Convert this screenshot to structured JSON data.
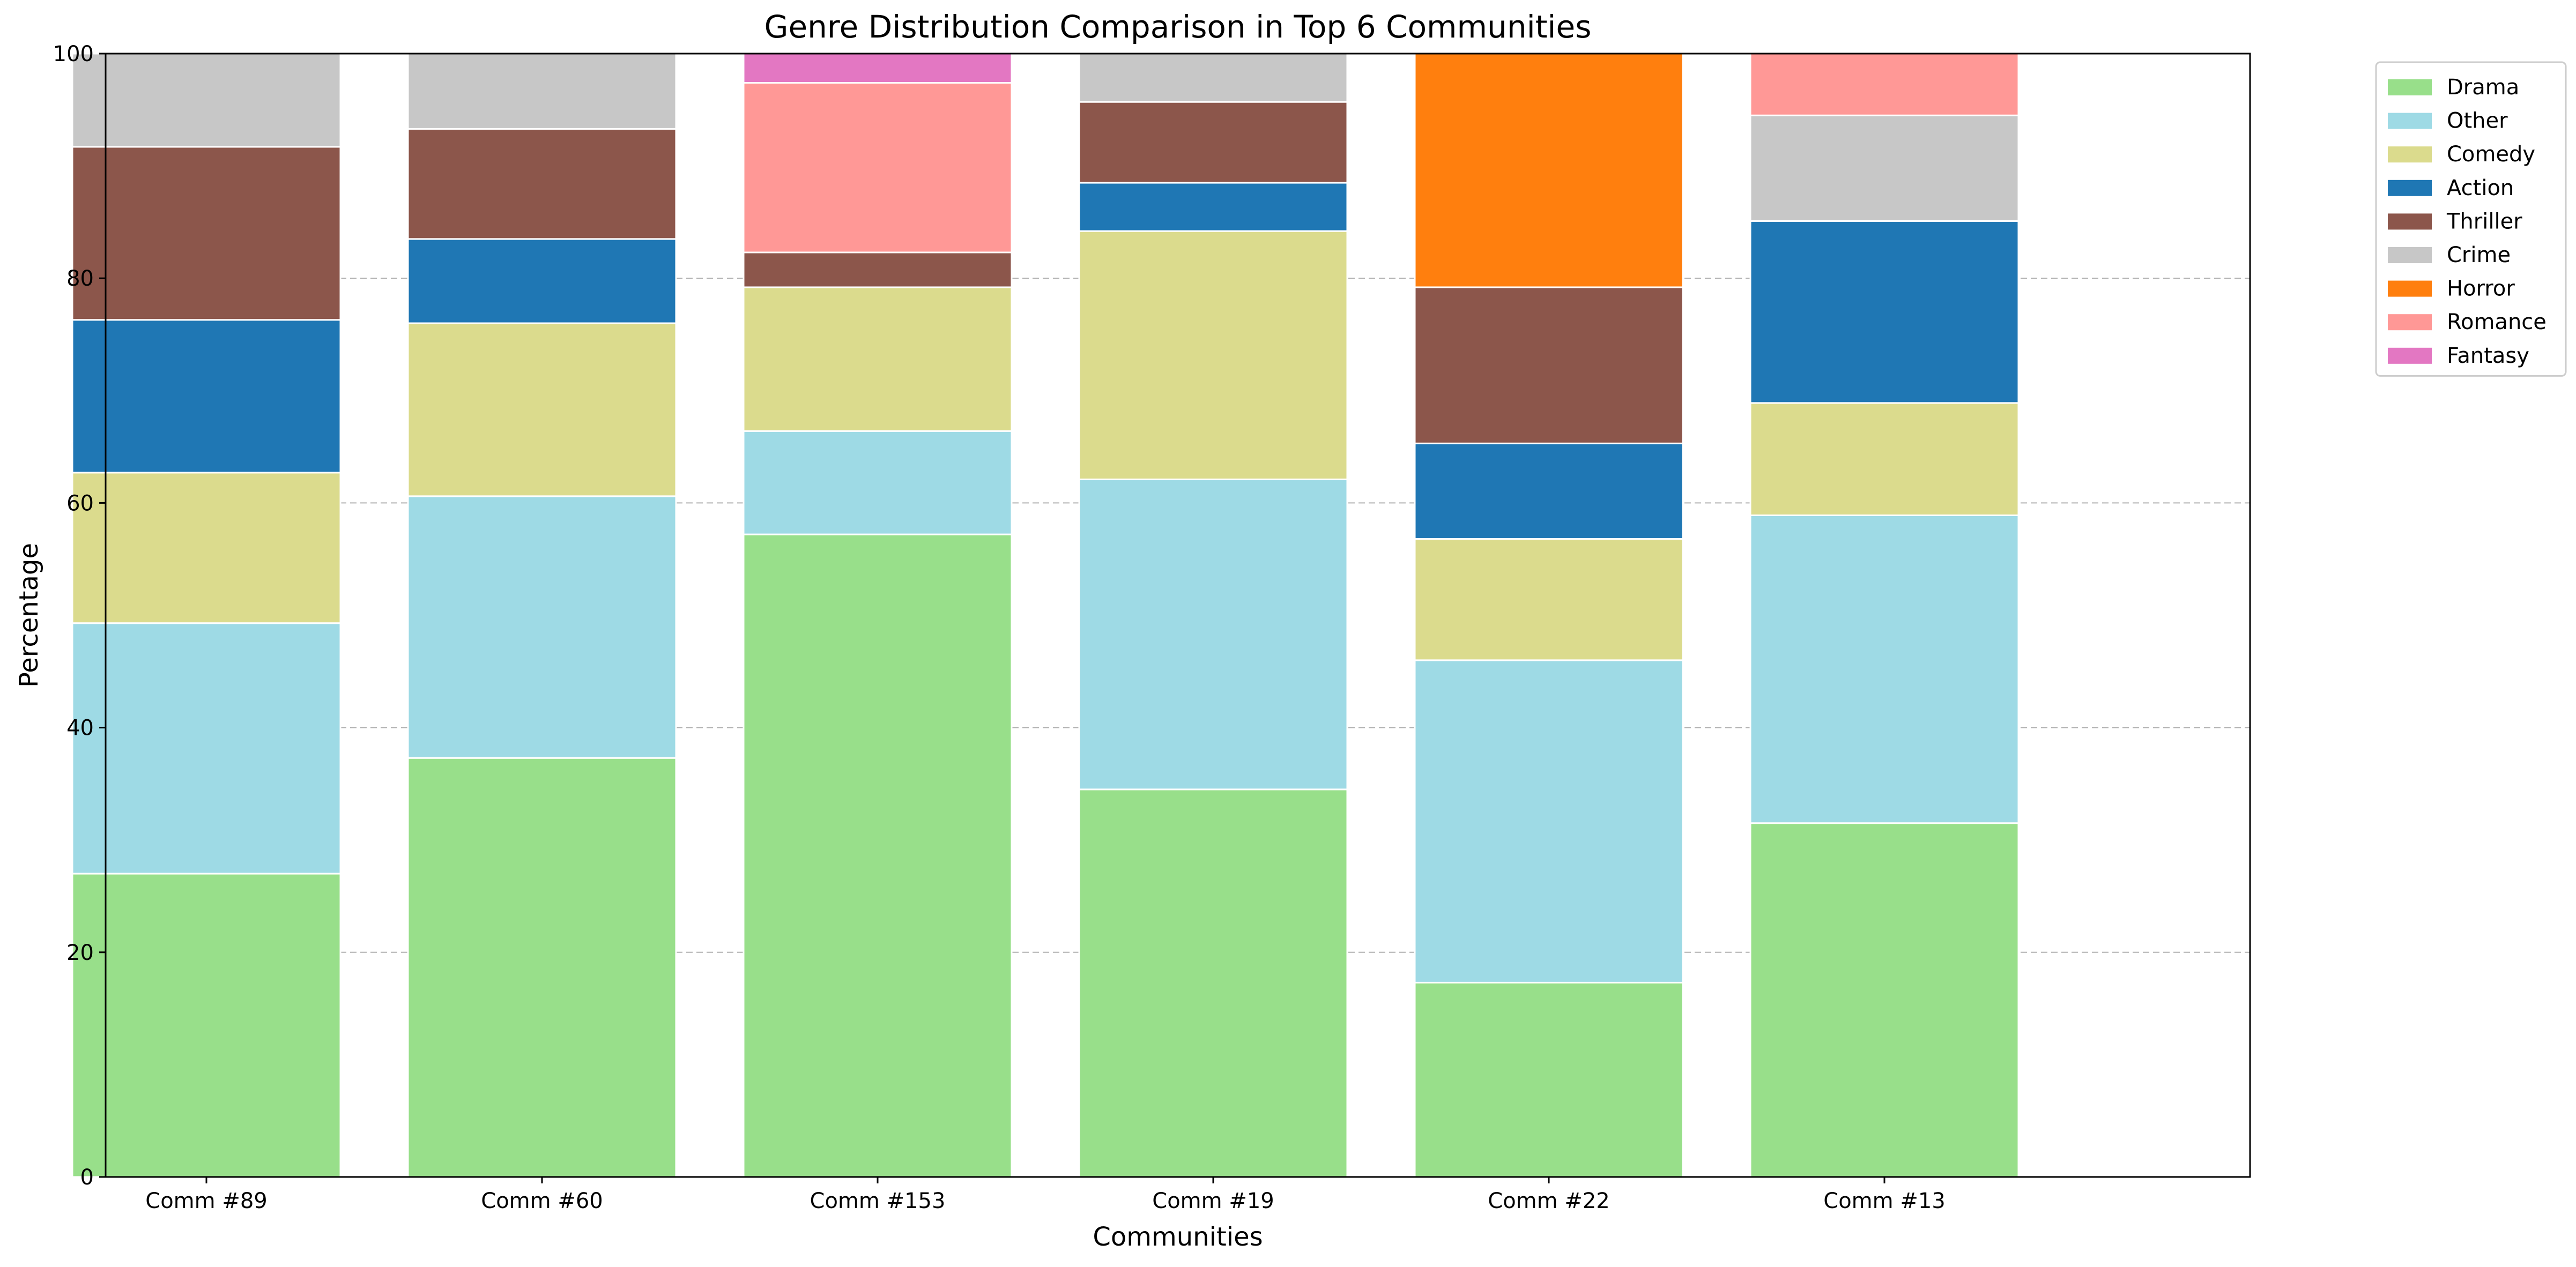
{
  "chart_data": {
    "type": "bar",
    "stacked": true,
    "title": "Genre Distribution Comparison in Top 6 Communities",
    "xlabel": "Communities",
    "ylabel": "Percentage",
    "ylim": [
      0,
      100
    ],
    "yticks": [
      0,
      20,
      40,
      60,
      80,
      100
    ],
    "grid": "horizontal dashed",
    "legend_position": "outside top-right",
    "categories": [
      "Comm #89",
      "Comm #60",
      "Comm #153",
      "Comm #19",
      "Comm #22",
      "Comm #13"
    ],
    "series": [
      {
        "name": "Drama",
        "color": "#98df8a",
        "values": [
          27.0,
          37.3,
          57.2,
          34.5,
          17.3,
          31.5
        ]
      },
      {
        "name": "Other",
        "color": "#9edae5",
        "values": [
          22.3,
          23.3,
          9.2,
          27.6,
          28.7,
          27.4
        ]
      },
      {
        "name": "Comedy",
        "color": "#dbdb8d",
        "values": [
          13.4,
          15.4,
          12.8,
          22.1,
          10.8,
          10.0
        ]
      },
      {
        "name": "Action",
        "color": "#1f77b4",
        "values": [
          13.6,
          7.5,
          0,
          4.3,
          8.5,
          16.2
        ]
      },
      {
        "name": "Thriller",
        "color": "#8c564b",
        "values": [
          15.4,
          9.8,
          3.1,
          7.2,
          13.9,
          0
        ]
      },
      {
        "name": "Crime",
        "color": "#c7c7c7",
        "values": [
          8.3,
          6.7,
          0,
          4.3,
          0,
          9.4
        ]
      },
      {
        "name": "Horror",
        "color": "#ff7f0e",
        "values": [
          0,
          0,
          0,
          0,
          20.8,
          0
        ]
      },
      {
        "name": "Romance",
        "color": "#ff9896",
        "values": [
          0,
          0,
          15.1,
          0,
          0,
          5.5
        ]
      },
      {
        "name": "Fantasy",
        "color": "#e377c2",
        "values": [
          0,
          0,
          2.6,
          0,
          0,
          0
        ]
      }
    ]
  }
}
